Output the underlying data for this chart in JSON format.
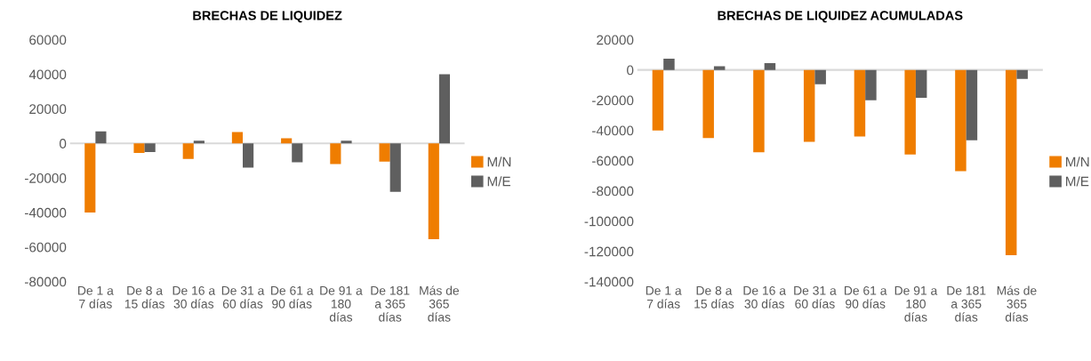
{
  "chart_data": [
    {
      "type": "bar",
      "title": "BRECHAS DE LIQUIDEZ",
      "categories": [
        "De 1 a 7 días",
        "De 8 a 15 días",
        "De 16 a 30 días",
        "De 31 a 60 días",
        "De 61 a 90 días",
        "De 91 a 180 días",
        "De 181 a 365 días",
        "Más de 365 días"
      ],
      "series": [
        {
          "name": "M/N",
          "color": "#ef7d00",
          "values": [
            -40000,
            -5500,
            -9000,
            6500,
            3000,
            -12000,
            -10500,
            -55500
          ]
        },
        {
          "name": "M/E",
          "color": "#5f5f5f",
          "values": [
            7000,
            -5000,
            1500,
            -14000,
            -11000,
            1500,
            -28000,
            40000
          ]
        }
      ],
      "ylim": [
        -80000,
        60000
      ],
      "yticks": [
        -80000,
        -60000,
        -40000,
        -20000,
        0,
        20000,
        40000,
        60000
      ],
      "legend": "right"
    },
    {
      "type": "bar",
      "title": "BRECHAS DE LIQUIDEZ ACUMULADAS",
      "categories": [
        "De 1 a 7 días",
        "De 8 a 15 días",
        "De 16 a 30 días",
        "De 31 a 60 días",
        "De 61 a 90 días",
        "De 91 a 180 días",
        "De 181 a 365 días",
        "Más de 365 días"
      ],
      "series": [
        {
          "name": "M/N",
          "color": "#ef7d00",
          "values": [
            -40000,
            -45000,
            -54500,
            -47500,
            -44000,
            -56000,
            -67000,
            -122500
          ]
        },
        {
          "name": "M/E",
          "color": "#5f5f5f",
          "values": [
            7500,
            2500,
            4500,
            -9500,
            -20000,
            -18500,
            -46500,
            -6000
          ]
        }
      ],
      "ylim": [
        -140000,
        20000
      ],
      "yticks": [
        -140000,
        -120000,
        -100000,
        -80000,
        -60000,
        -40000,
        -20000,
        0,
        20000
      ],
      "legend": "right"
    }
  ]
}
